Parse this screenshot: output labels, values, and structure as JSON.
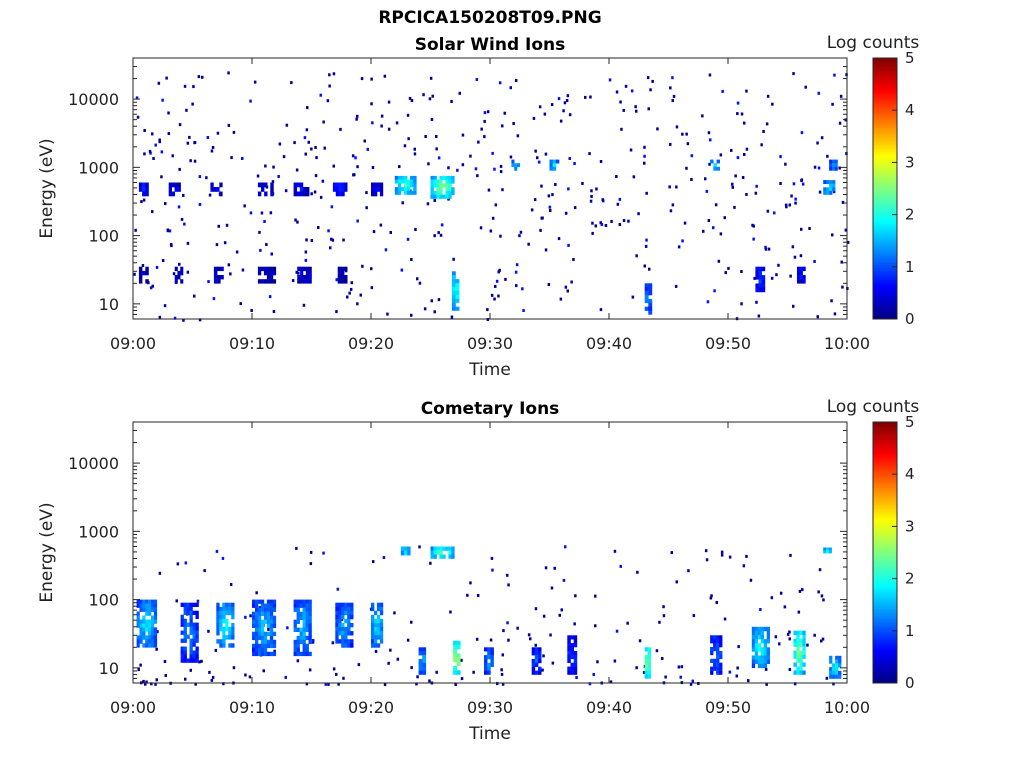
{
  "figure_title": "RPCICA150208T09.PNG",
  "chart_data": [
    {
      "type": "heatmap",
      "title": "Solar Wind Ions",
      "xlabel": "Time",
      "ylabel": "Energy (eV)",
      "x_ticks": [
        "09:00",
        "09:10",
        "09:20",
        "09:30",
        "09:40",
        "09:50",
        "10:00"
      ],
      "x_range": [
        "09:00",
        "10:00"
      ],
      "y_ticks": [
        10,
        100,
        1000,
        10000
      ],
      "y_scale": "log",
      "ylim": [
        6,
        40000
      ],
      "colorbar": {
        "label": "Log counts",
        "ticks": [
          0,
          1,
          2,
          3,
          4,
          5
        ],
        "range": [
          0,
          5
        ],
        "colormap": "jet"
      },
      "blobs": [
        {
          "t": [
            0.5,
            1.3
          ],
          "e": [
            20,
            35
          ],
          "v": 0.4
        },
        {
          "t": [
            0.5,
            1.3
          ],
          "e": [
            380,
            600
          ],
          "v": 0.8
        },
        {
          "t": [
            3.0,
            4.0
          ],
          "e": [
            380,
            600
          ],
          "v": 0.6
        },
        {
          "t": [
            3.5,
            4.2
          ],
          "e": [
            20,
            35
          ],
          "v": 0.3
        },
        {
          "t": [
            6.5,
            7.5
          ],
          "e": [
            380,
            600
          ],
          "v": 0.6
        },
        {
          "t": [
            6.8,
            7.6
          ],
          "e": [
            20,
            35
          ],
          "v": 0.4
        },
        {
          "t": [
            10.5,
            11.8
          ],
          "e": [
            380,
            600
          ],
          "v": 0.6
        },
        {
          "t": [
            10.5,
            12.0
          ],
          "e": [
            20,
            35
          ],
          "v": 0.3
        },
        {
          "t": [
            13.5,
            14.8
          ],
          "e": [
            380,
            600
          ],
          "v": 0.6
        },
        {
          "t": [
            13.8,
            15.0
          ],
          "e": [
            20,
            35
          ],
          "v": 0.4
        },
        {
          "t": [
            16.8,
            18.0
          ],
          "e": [
            380,
            600
          ],
          "v": 0.8
        },
        {
          "t": [
            17.2,
            18.0
          ],
          "e": [
            20,
            35
          ],
          "v": 0.3
        },
        {
          "t": [
            20.0,
            21.0
          ],
          "e": [
            380,
            600
          ],
          "v": 0.6
        },
        {
          "t": [
            22.0,
            23.8
          ],
          "e": [
            400,
            750
          ],
          "v": 2.3
        },
        {
          "t": [
            25.0,
            27.0
          ],
          "e": [
            350,
            750
          ],
          "v": 2.6
        },
        {
          "t": [
            26.8,
            27.4
          ],
          "e": [
            8,
            30
          ],
          "v": 2.2
        },
        {
          "t": [
            31.8,
            32.5
          ],
          "e": [
            900,
            1300
          ],
          "v": 1.6
        },
        {
          "t": [
            35.0,
            35.8
          ],
          "e": [
            900,
            1300
          ],
          "v": 1.8
        },
        {
          "t": [
            43.0,
            43.6
          ],
          "e": [
            7,
            20
          ],
          "v": 1.4
        },
        {
          "t": [
            48.5,
            49.3
          ],
          "e": [
            900,
            1300
          ],
          "v": 1.7
        },
        {
          "t": [
            52.3,
            53.1
          ],
          "e": [
            15,
            35
          ],
          "v": 0.9
        },
        {
          "t": [
            55.8,
            56.5
          ],
          "e": [
            20,
            35
          ],
          "v": 0.7
        },
        {
          "t": [
            58.0,
            59.0
          ],
          "e": [
            400,
            650
          ],
          "v": 1.9
        },
        {
          "t": [
            58.5,
            59.2
          ],
          "e": [
            900,
            1300
          ],
          "v": 1.5
        }
      ]
    },
    {
      "type": "heatmap",
      "title": "Cometary Ions",
      "xlabel": "Time",
      "ylabel": "Energy (eV)",
      "x_ticks": [
        "09:00",
        "09:10",
        "09:20",
        "09:30",
        "09:40",
        "09:50",
        "10:00"
      ],
      "x_range": [
        "09:00",
        "10:00"
      ],
      "y_ticks": [
        10,
        100,
        1000,
        10000
      ],
      "y_scale": "log",
      "ylim": [
        6,
        40000
      ],
      "colorbar": {
        "label": "Log counts",
        "ticks": [
          0,
          1,
          2,
          3,
          4,
          5
        ],
        "range": [
          0,
          5
        ],
        "colormap": "jet"
      },
      "blobs": [
        {
          "t": [
            0.3,
            2.0
          ],
          "e": [
            20,
            100
          ],
          "v": 1.8
        },
        {
          "t": [
            4.0,
            5.5
          ],
          "e": [
            12,
            90
          ],
          "v": 1.3
        },
        {
          "t": [
            7.0,
            8.5
          ],
          "e": [
            20,
            90
          ],
          "v": 1.9
        },
        {
          "t": [
            10.0,
            12.0
          ],
          "e": [
            15,
            100
          ],
          "v": 1.6
        },
        {
          "t": [
            13.5,
            15.0
          ],
          "e": [
            15,
            100
          ],
          "v": 1.6
        },
        {
          "t": [
            17.0,
            18.5
          ],
          "e": [
            20,
            90
          ],
          "v": 1.5
        },
        {
          "t": [
            20.0,
            21.0
          ],
          "e": [
            20,
            90
          ],
          "v": 1.8
        },
        {
          "t": [
            22.5,
            23.3
          ],
          "e": [
            450,
            600
          ],
          "v": 2.0
        },
        {
          "t": [
            25.0,
            27.0
          ],
          "e": [
            400,
            600
          ],
          "v": 2.4
        },
        {
          "t": [
            24.0,
            24.6
          ],
          "e": [
            8,
            20
          ],
          "v": 1.6
        },
        {
          "t": [
            26.9,
            27.5
          ],
          "e": [
            8,
            25
          ],
          "v": 3.0
        },
        {
          "t": [
            29.5,
            30.3
          ],
          "e": [
            8,
            20
          ],
          "v": 1.4
        },
        {
          "t": [
            33.5,
            34.3
          ],
          "e": [
            8,
            20
          ],
          "v": 1.0
        },
        {
          "t": [
            36.5,
            37.3
          ],
          "e": [
            8,
            30
          ],
          "v": 0.9
        },
        {
          "t": [
            43.0,
            43.5
          ],
          "e": [
            7,
            20
          ],
          "v": 2.8
        },
        {
          "t": [
            48.5,
            49.5
          ],
          "e": [
            8,
            30
          ],
          "v": 1.2
        },
        {
          "t": [
            52.0,
            53.5
          ],
          "e": [
            10,
            40
          ],
          "v": 2.0
        },
        {
          "t": [
            55.5,
            56.5
          ],
          "e": [
            8,
            35
          ],
          "v": 2.7
        },
        {
          "t": [
            58.5,
            59.5
          ],
          "e": [
            7,
            15
          ],
          "v": 1.9
        },
        {
          "t": [
            58.0,
            58.7
          ],
          "e": [
            480,
            580
          ],
          "v": 2.2
        }
      ]
    }
  ]
}
